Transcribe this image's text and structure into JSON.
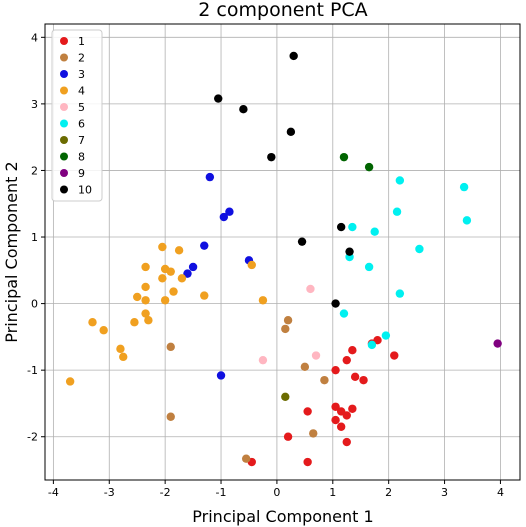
{
  "chart_data": {
    "type": "scatter",
    "title": "2 component PCA",
    "xlabel": "Principal Component 1",
    "ylabel": "Principal Component 2",
    "xlim": [
      -4.15,
      4.35
    ],
    "ylim": [
      -2.65,
      4.2
    ],
    "xticks": [
      -4,
      -3,
      -2,
      -1,
      0,
      1,
      2,
      3,
      4
    ],
    "yticks": [
      -2,
      -1,
      0,
      1,
      2,
      3,
      4
    ],
    "grid": true,
    "legend_position": "top-left",
    "series": [
      {
        "name": "1",
        "color": "#e41a1c",
        "points": [
          [
            -0.45,
            -2.38
          ],
          [
            0.2,
            -2.0
          ],
          [
            0.55,
            -2.38
          ],
          [
            1.25,
            -2.08
          ],
          [
            1.05,
            -1.75
          ],
          [
            1.15,
            -1.62
          ],
          [
            1.25,
            -1.68
          ],
          [
            1.35,
            -1.58
          ],
          [
            1.05,
            -1.55
          ],
          [
            0.55,
            -1.62
          ],
          [
            1.15,
            -1.85
          ],
          [
            1.05,
            -1.0
          ],
          [
            1.25,
            -0.85
          ],
          [
            1.35,
            -0.7
          ],
          [
            1.4,
            -1.1
          ],
          [
            1.55,
            -1.15
          ],
          [
            1.7,
            -0.6
          ],
          [
            1.8,
            -0.55
          ],
          [
            2.1,
            -0.78
          ]
        ]
      },
      {
        "name": "2",
        "color": "#c08040",
        "points": [
          [
            -1.9,
            -0.65
          ],
          [
            -1.9,
            -1.7
          ],
          [
            -0.55,
            -2.33
          ],
          [
            0.65,
            -1.95
          ],
          [
            0.85,
            -1.15
          ],
          [
            0.5,
            -0.95
          ],
          [
            0.2,
            -0.25
          ],
          [
            0.15,
            -0.38
          ]
        ]
      },
      {
        "name": "3",
        "color": "#1010e0",
        "points": [
          [
            -1.2,
            1.9
          ],
          [
            -0.85,
            1.38
          ],
          [
            -0.95,
            1.3
          ],
          [
            -1.3,
            0.87
          ],
          [
            -1.5,
            0.55
          ],
          [
            -1.6,
            0.45
          ],
          [
            -0.5,
            0.65
          ],
          [
            -1.0,
            -1.08
          ]
        ]
      },
      {
        "name": "4",
        "color": "#f0a020",
        "points": [
          [
            -2.05,
            0.85
          ],
          [
            -1.75,
            0.8
          ],
          [
            -2.35,
            0.55
          ],
          [
            -2.0,
            0.52
          ],
          [
            -1.9,
            0.48
          ],
          [
            -2.05,
            0.38
          ],
          [
            -1.7,
            0.38
          ],
          [
            -2.35,
            0.25
          ],
          [
            -2.5,
            0.1
          ],
          [
            -2.35,
            0.05
          ],
          [
            -2.0,
            0.05
          ],
          [
            -1.85,
            0.18
          ],
          [
            -2.35,
            -0.15
          ],
          [
            -2.3,
            -0.25
          ],
          [
            -1.3,
            0.12
          ],
          [
            -2.55,
            -0.28
          ],
          [
            -3.3,
            -0.28
          ],
          [
            -3.1,
            -0.4
          ],
          [
            -2.8,
            -0.68
          ],
          [
            -2.75,
            -0.8
          ],
          [
            -3.7,
            -1.17
          ],
          [
            -0.45,
            0.58
          ],
          [
            -0.25,
            0.05
          ]
        ]
      },
      {
        "name": "5",
        "color": "#ffb6c1",
        "points": [
          [
            -0.25,
            -0.85
          ],
          [
            0.6,
            0.22
          ],
          [
            0.7,
            -0.78
          ]
        ]
      },
      {
        "name": "6",
        "color": "#00f0f0",
        "points": [
          [
            2.2,
            1.85
          ],
          [
            3.35,
            1.75
          ],
          [
            2.15,
            1.38
          ],
          [
            3.4,
            1.25
          ],
          [
            1.35,
            1.15
          ],
          [
            1.75,
            1.08
          ],
          [
            2.55,
            0.82
          ],
          [
            1.3,
            0.7
          ],
          [
            1.65,
            0.55
          ],
          [
            2.2,
            0.15
          ],
          [
            1.2,
            -0.15
          ],
          [
            1.95,
            -0.48
          ],
          [
            1.7,
            -0.62
          ]
        ]
      },
      {
        "name": "7",
        "color": "#6b6b00",
        "points": [
          [
            0.15,
            -1.4
          ]
        ]
      },
      {
        "name": "8",
        "color": "#006400",
        "points": [
          [
            1.2,
            2.2
          ],
          [
            1.65,
            2.05
          ]
        ]
      },
      {
        "name": "9",
        "color": "#800080",
        "points": [
          [
            3.95,
            -0.6
          ]
        ]
      },
      {
        "name": "10",
        "color": "#000000",
        "points": [
          [
            0.3,
            3.72
          ],
          [
            -1.05,
            3.08
          ],
          [
            -0.6,
            2.92
          ],
          [
            0.25,
            2.58
          ],
          [
            -0.1,
            2.2
          ],
          [
            1.15,
            1.15
          ],
          [
            0.45,
            0.93
          ],
          [
            1.3,
            0.78
          ],
          [
            1.05,
            0.0
          ]
        ]
      }
    ]
  }
}
